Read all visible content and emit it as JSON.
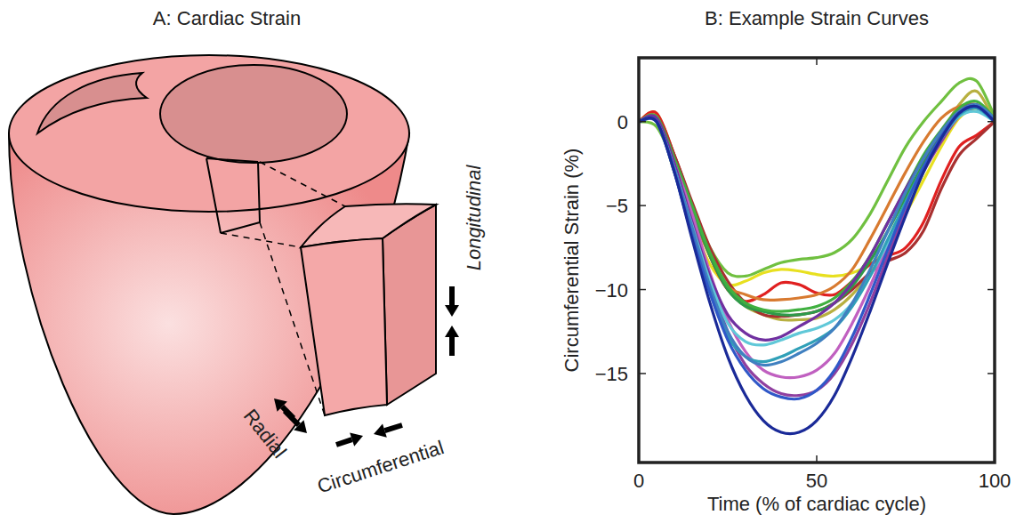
{
  "diagram": {
    "title": "A: Cardiac Strain",
    "labels": [
      "Radial",
      "Circumferential",
      "Longitudinal"
    ]
  },
  "chart_data": {
    "type": "line",
    "title": "B: Example Strain Curves",
    "x_label": "Time (% of cardiac cycle)",
    "y_label": "Circumferential Strain (%)",
    "x": [
      0,
      5,
      10,
      15,
      20,
      25,
      30,
      35,
      40,
      45,
      50,
      55,
      60,
      65,
      70,
      75,
      80,
      85,
      90,
      95,
      100
    ],
    "xlim": [
      0,
      100
    ],
    "xticks": [
      0,
      50,
      100
    ],
    "ylim": [
      -20.3,
      3.8
    ],
    "yticks": [
      {
        "value": -15,
        "label": "−15"
      },
      {
        "value": -10,
        "label": "−10"
      },
      {
        "value": -5,
        "label": "−5"
      },
      {
        "value": 0,
        "label": "0"
      }
    ],
    "grid": false,
    "series": [
      {
        "color": "#b8b040",
        "values": [
          0,
          0.5,
          -2,
          -5,
          -8,
          -10,
          -11,
          -11.5,
          -11.8,
          -11.8,
          -11.7,
          -11.2,
          -10.3,
          -9,
          -7.5,
          -5.5,
          -3,
          -0.8,
          1,
          1.8,
          0
        ]
      },
      {
        "color": "#70c040",
        "values": [
          0,
          -0.3,
          -2.5,
          -5,
          -7.5,
          -9,
          -9.2,
          -8.8,
          -8.4,
          -8.2,
          -8.1,
          -7.8,
          -7,
          -5.5,
          -3.5,
          -1.5,
          0,
          1.2,
          2.3,
          2.4,
          0.3
        ]
      },
      {
        "color": "#e8e020",
        "values": [
          0,
          0.2,
          -3,
          -6,
          -8.5,
          -9.7,
          -9.5,
          -9,
          -8.8,
          -8.9,
          -9.1,
          -9.2,
          -9,
          -8.5,
          -7.5,
          -5.5,
          -3.5,
          -1.5,
          0.2,
          0.8,
          0.3
        ]
      },
      {
        "color": "#e02020",
        "values": [
          0,
          0.5,
          -2,
          -5,
          -8,
          -10,
          -10.7,
          -10.3,
          -9.6,
          -9.7,
          -10.2,
          -10.3,
          -9.5,
          -8.5,
          -8,
          -7.5,
          -6,
          -3.5,
          -1.5,
          -0.8,
          0
        ]
      },
      {
        "color": "#a83030",
        "values": [
          0,
          0.3,
          -2,
          -4.8,
          -7.5,
          -9.5,
          -10.8,
          -11.5,
          -11.6,
          -11.5,
          -11.3,
          -10.8,
          -10,
          -9,
          -8.3,
          -7.8,
          -6.5,
          -4,
          -2,
          -1,
          0
        ]
      },
      {
        "color": "#d87a30",
        "values": [
          0,
          0.3,
          -2.5,
          -5.5,
          -8,
          -9.8,
          -10.3,
          -10.6,
          -10.6,
          -10.5,
          -10.3,
          -9.8,
          -8.8,
          -7,
          -5,
          -3,
          -1.2,
          0.2,
          0.9,
          1,
          0.2
        ]
      },
      {
        "color": "#2e9a4a",
        "values": [
          0,
          0.2,
          -2.3,
          -5.2,
          -8,
          -10,
          -11,
          -11.3,
          -11.5,
          -11.5,
          -11.3,
          -10.8,
          -9.8,
          -8.3,
          -6.5,
          -4.5,
          -2.5,
          -0.8,
          0.5,
          0.9,
          0.1
        ]
      },
      {
        "color": "#40b040",
        "values": [
          0,
          0.3,
          -2.2,
          -5,
          -7.8,
          -9.8,
          -10.8,
          -11.2,
          -11.3,
          -11.2,
          -11,
          -10.5,
          -9.5,
          -8,
          -6,
          -4,
          -2,
          -0.5,
          0.8,
          1.2,
          0.2
        ]
      },
      {
        "color": "#9040a0",
        "values": [
          0,
          0.2,
          -2.5,
          -6,
          -9.5,
          -12.5,
          -14.5,
          -15.6,
          -16.2,
          -16.3,
          -16,
          -15,
          -13.2,
          -10.8,
          -8,
          -5.3,
          -3,
          -1.2,
          0.3,
          0.8,
          0
        ]
      },
      {
        "color": "#c060c0",
        "values": [
          0,
          0,
          -2.5,
          -5.5,
          -9,
          -11.8,
          -13.7,
          -14.8,
          -15.2,
          -15.2,
          -14.8,
          -13.8,
          -12,
          -9.8,
          -7.3,
          -5,
          -2.8,
          -1,
          0.5,
          1,
          0
        ]
      },
      {
        "color": "#7030a0",
        "values": [
          0,
          0.2,
          -2.5,
          -6,
          -9.2,
          -11.5,
          -12.6,
          -13,
          -12.8,
          -12.2,
          -11.6,
          -10.8,
          -9.6,
          -8,
          -6,
          -4,
          -2.2,
          -0.6,
          0.6,
          1,
          0
        ]
      },
      {
        "color": "#60c8d8",
        "values": [
          0,
          0,
          -2.8,
          -6.2,
          -9.5,
          -12,
          -13.1,
          -13.3,
          -13,
          -12.6,
          -12.3,
          -11.8,
          -10.8,
          -9.2,
          -7.2,
          -5,
          -2.8,
          -1,
          0.3,
          0.6,
          0
        ]
      },
      {
        "color": "#30a0b8",
        "values": [
          0,
          0,
          -3,
          -6.8,
          -10.2,
          -12.8,
          -14,
          -14.3,
          -14,
          -13.5,
          -13,
          -12.3,
          -11,
          -9.2,
          -7,
          -4.8,
          -2.7,
          -1,
          0.4,
          0.8,
          0
        ]
      },
      {
        "color": "#4080c0",
        "values": [
          0,
          0,
          -2.8,
          -6.3,
          -9.8,
          -12.5,
          -14,
          -14.5,
          -14.3,
          -13.8,
          -13.2,
          -12.3,
          -10.8,
          -8.8,
          -6.5,
          -4.2,
          -2.2,
          -0.6,
          0.6,
          1,
          0.2
        ]
      },
      {
        "color": "#3058c8",
        "values": [
          0,
          0,
          -3,
          -6.8,
          -10.2,
          -13,
          -14.8,
          -15.9,
          -16.4,
          -16.5,
          -16,
          -14.8,
          -12.8,
          -10.3,
          -7.6,
          -5,
          -2.7,
          -0.9,
          0.5,
          0.9,
          0
        ]
      },
      {
        "color": "#1a2a98",
        "values": [
          0,
          0,
          -3,
          -7,
          -10.8,
          -14,
          -16.3,
          -17.8,
          -18.5,
          -18.5,
          -17.8,
          -16.3,
          -14,
          -11.3,
          -8.4,
          -5.6,
          -3,
          -1,
          0.5,
          0.9,
          0
        ]
      }
    ]
  }
}
